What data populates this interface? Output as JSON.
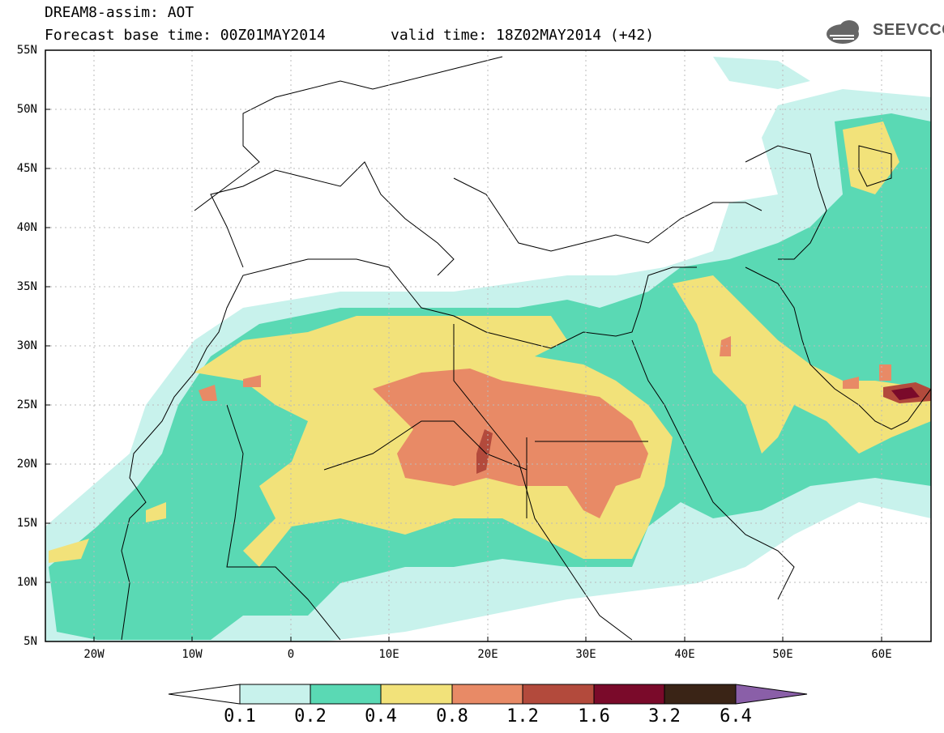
{
  "header": {
    "title": "DREAM8-assim: AOT",
    "base_time": "Forecast base time: 00Z01MAY2014",
    "valid_time": "valid time: 18Z02MAY2014 (+42)",
    "logo_text": "SEEVCCC"
  },
  "axes": {
    "lat_labels": [
      "55N",
      "50N",
      "45N",
      "40N",
      "35N",
      "30N",
      "25N",
      "20N",
      "15N",
      "10N",
      "5N"
    ],
    "lon_labels": [
      "20W",
      "10W",
      "0",
      "10E",
      "20E",
      "30E",
      "40E",
      "50E",
      "60E"
    ]
  },
  "colorbar": {
    "labels": [
      "0.1",
      "0.2",
      "0.4",
      "0.8",
      "1.2",
      "1.6",
      "3.2",
      "6.4"
    ],
    "colors": [
      "#ffffff",
      "#c8f2ec",
      "#5ad9b4",
      "#f2e27a",
      "#e88a66",
      "#b34a3c",
      "#7a0a2a",
      "#3a2416",
      "#8a5fa8"
    ]
  }
}
